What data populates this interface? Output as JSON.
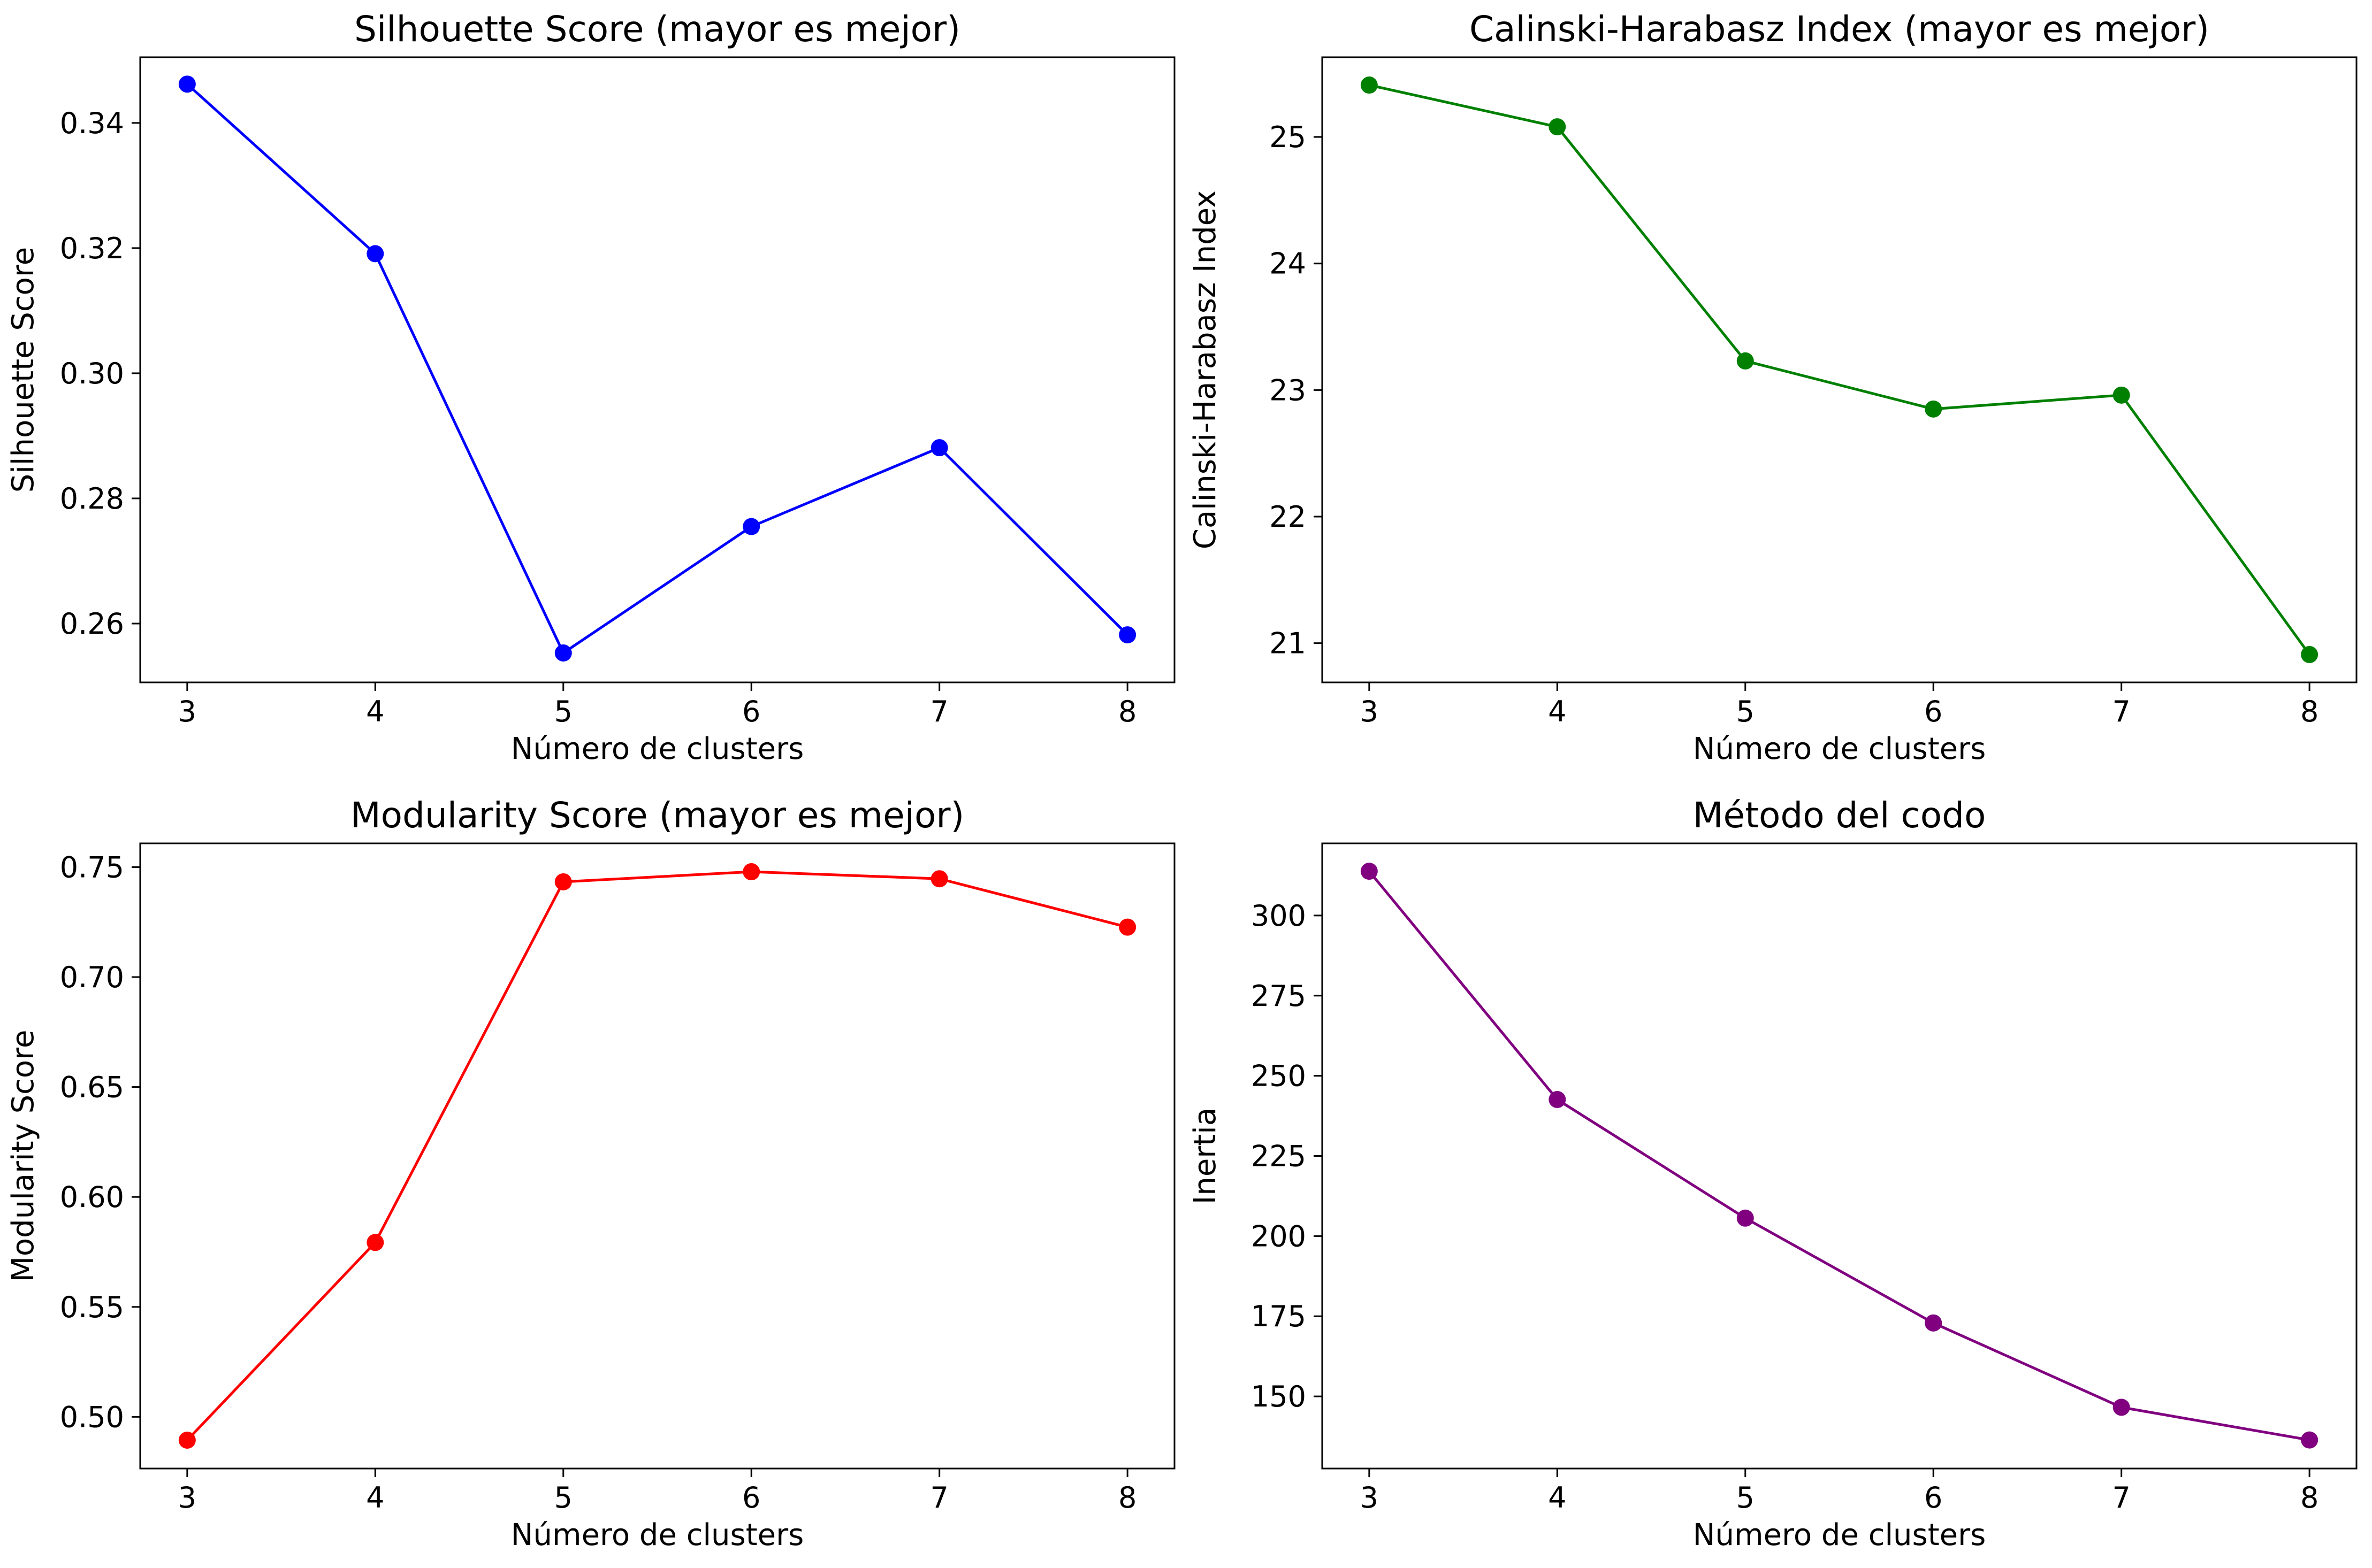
{
  "chart_data": [
    {
      "type": "line",
      "title": "Silhouette Score (mayor es mejor)",
      "xlabel": "Número de clusters",
      "ylabel": "Silhouette Score",
      "x": [
        3,
        4,
        5,
        6,
        7,
        8
      ],
      "y": [
        0.3462,
        0.3191,
        0.2553,
        0.2755,
        0.2881,
        0.2582
      ],
      "xticks": [
        3,
        4,
        5,
        6,
        7,
        8
      ],
      "yticks": [
        0.26,
        0.28,
        0.3,
        0.32,
        0.34
      ],
      "ytick_labels": [
        "0.26",
        "0.28",
        "0.30",
        "0.32",
        "0.34"
      ],
      "xlim": [
        2.75,
        8.25
      ],
      "ylim": [
        0.2506,
        0.3505
      ],
      "color": "#0000ff",
      "marker": "circle",
      "grid": false
    },
    {
      "type": "line",
      "title": "Calinski-Harabasz Index (mayor es mejor)",
      "xlabel": "Número de clusters",
      "ylabel": "Calinski-Harabasz Index",
      "x": [
        3,
        4,
        5,
        6,
        7,
        8
      ],
      "y": [
        25.41,
        25.08,
        23.23,
        22.85,
        22.96,
        20.91
      ],
      "xticks": [
        3,
        4,
        5,
        6,
        7,
        8
      ],
      "yticks": [
        21,
        22,
        23,
        24,
        25
      ],
      "ytick_labels": [
        "21",
        "22",
        "23",
        "24",
        "25"
      ],
      "xlim": [
        2.75,
        8.25
      ],
      "ylim": [
        20.69,
        25.63
      ],
      "color": "#008000",
      "marker": "circle",
      "grid": false
    },
    {
      "type": "line",
      "title": "Modularity Score (mayor es mejor)",
      "xlabel": "Número de clusters",
      "ylabel": "Modularity Score",
      "x": [
        3,
        4,
        5,
        6,
        7,
        8
      ],
      "y": [
        0.4894,
        0.5793,
        0.7433,
        0.7479,
        0.7447,
        0.7227
      ],
      "xticks": [
        3,
        4,
        5,
        6,
        7,
        8
      ],
      "yticks": [
        0.5,
        0.55,
        0.6,
        0.65,
        0.7,
        0.75
      ],
      "ytick_labels": [
        "0.50",
        "0.55",
        "0.60",
        "0.65",
        "0.70",
        "0.75"
      ],
      "xlim": [
        2.75,
        8.25
      ],
      "ylim": [
        0.4765,
        0.7608
      ],
      "color": "#ff0000",
      "marker": "circle",
      "grid": false
    },
    {
      "type": "line",
      "title": "Método del codo",
      "xlabel": "Número de clusters",
      "ylabel": "Inertia",
      "x": [
        3,
        4,
        5,
        6,
        7,
        8
      ],
      "y": [
        313.8,
        242.6,
        205.6,
        172.9,
        146.6,
        136.4
      ],
      "xticks": [
        3,
        4,
        5,
        6,
        7,
        8
      ],
      "yticks": [
        150,
        175,
        200,
        225,
        250,
        275,
        300
      ],
      "ytick_labels": [
        "150",
        "175",
        "200",
        "225",
        "250",
        "275",
        "300"
      ],
      "xlim": [
        2.75,
        8.25
      ],
      "ylim": [
        127.5,
        322.5
      ],
      "color": "#800080",
      "marker": "circle",
      "grid": false
    }
  ]
}
